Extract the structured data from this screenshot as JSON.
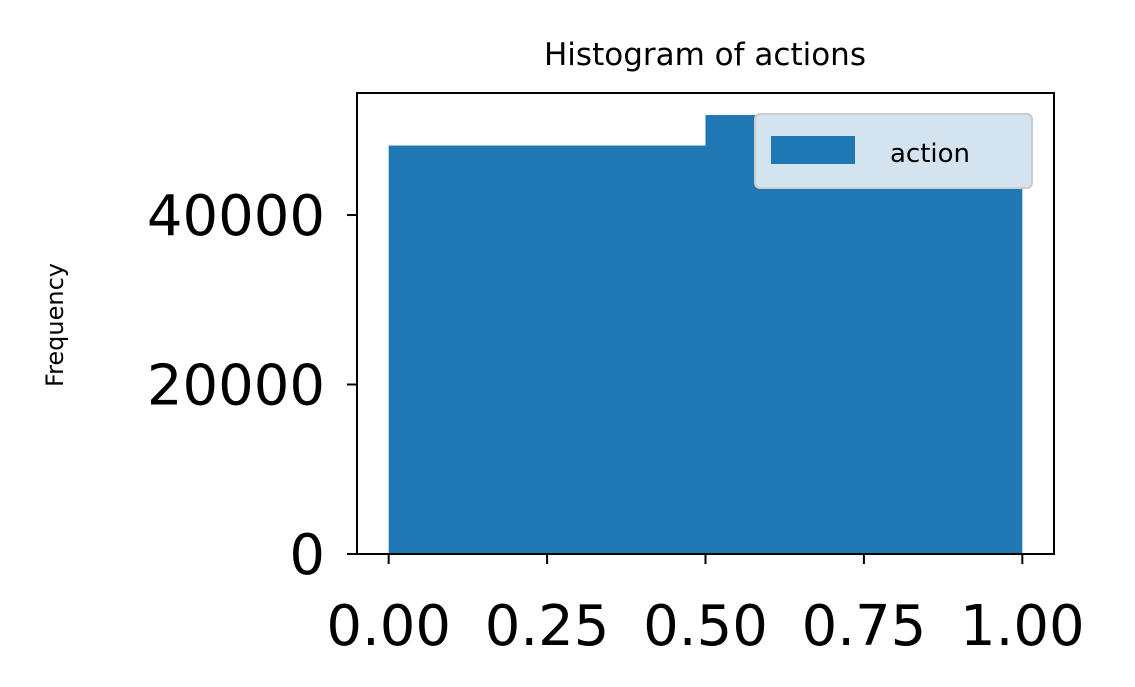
{
  "chart_data": {
    "type": "bar",
    "subtype": "histogram",
    "title": "Histogram of actions",
    "xlabel": "",
    "ylabel": "Frequency",
    "bins": [
      {
        "x0": 0.0,
        "x1": 0.5,
        "count": 48200
      },
      {
        "x0": 0.5,
        "x1": 1.0,
        "count": 51800
      }
    ],
    "xlim": [
      -0.05,
      1.05
    ],
    "ylim": [
      0,
      54400
    ],
    "xticks": [
      0.0,
      0.25,
      0.5,
      0.75,
      1.0
    ],
    "xtick_labels": [
      "0.00",
      "0.25",
      "0.50",
      "0.75",
      "1.00"
    ],
    "yticks": [
      0,
      20000,
      40000
    ],
    "ytick_labels": [
      "0",
      "20000",
      "40000"
    ],
    "grid": false,
    "legend": {
      "position": "upper right",
      "entries": [
        "action"
      ]
    },
    "colors": {
      "bar": "#1f77b4",
      "legend_bg": "#d3e4f0"
    }
  }
}
